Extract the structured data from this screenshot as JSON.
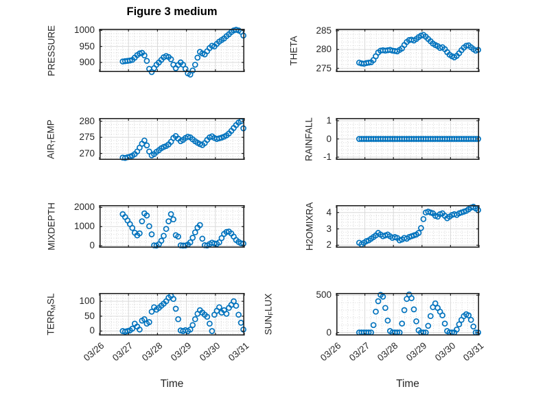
{
  "figure": {
    "title": "Figure 3 medium",
    "xlabel": "Time",
    "background": "#ffffff",
    "axis_color": "#222222",
    "tick_label_color": "#262626",
    "marker_color": "#0072BD",
    "major_grid_color": "#d9d9d9",
    "minor_grid_color": "#cfcfcf"
  },
  "time_axis": {
    "xlim_days": [
      0,
      5
    ],
    "tick_labels": [
      "03/26",
      "03/27",
      "03/28",
      "03/29",
      "03/30",
      "03/31"
    ],
    "minor_step_day": 0.2,
    "x_start_day": 0.8,
    "x_step_day": 0.0833333
  },
  "chart_data": [
    {
      "name": "PRESSURE",
      "type": "scatter",
      "ylabel": "PRESSURE",
      "ylim": [
        870,
        1005
      ],
      "yticks": [
        900,
        950,
        1000
      ],
      "minor_step": 10,
      "values": [
        903,
        904,
        905,
        906,
        908,
        915,
        923,
        928,
        930,
        922,
        905,
        880,
        870,
        882,
        893,
        900,
        908,
        916,
        920,
        917,
        910,
        893,
        882,
        892,
        900,
        893,
        880,
        866,
        862,
        875,
        893,
        915,
        933,
        928,
        925,
        935,
        945,
        952,
        950,
        958,
        965,
        970,
        975,
        982,
        988,
        995,
        1000,
        1002,
        1000,
        996,
        984
      ]
    },
    {
      "name": "THETA",
      "type": "scatter",
      "ylabel": "THETA",
      "ylim": [
        274,
        285.5
      ],
      "yticks": [
        275,
        280,
        285
      ],
      "minor_step": 1,
      "values": [
        276.5,
        276.3,
        276.2,
        276.4,
        276.5,
        276.6,
        277.2,
        278.2,
        279.2,
        279.7,
        279.8,
        279.7,
        279.8,
        279.9,
        279.7,
        279.6,
        279.5,
        279.9,
        280.3,
        281.2,
        282.0,
        282.5,
        282.6,
        282.4,
        282.8,
        283.3,
        283.7,
        283.9,
        283.4,
        282.8,
        282.2,
        281.6,
        281.2,
        280.9,
        280.4,
        280.6,
        280.1,
        279.3,
        278.6,
        278.2,
        277.9,
        278.3,
        279.0,
        279.8,
        280.5,
        281.0,
        281.1,
        280.6,
        280.1,
        279.7,
        279.9
      ]
    },
    {
      "name": "AIR_TEMP",
      "type": "scatter",
      "ylabel": "AIR_TEMP",
      "ylim": [
        268,
        281
      ],
      "yticks": [
        270,
        275,
        280
      ],
      "minor_step": 1,
      "values": [
        268.7,
        268.6,
        268.8,
        269.0,
        269.3,
        269.8,
        270.6,
        271.8,
        273.0,
        274.0,
        272.5,
        270.6,
        269.4,
        269.8,
        270.5,
        271.0,
        271.6,
        272.0,
        272.3,
        272.8,
        273.6,
        274.8,
        275.4,
        274.6,
        273.8,
        274.2,
        274.8,
        275.2,
        275.0,
        274.4,
        273.8,
        273.3,
        272.9,
        272.6,
        273.2,
        274.2,
        275.0,
        275.3,
        274.8,
        274.5,
        274.7,
        274.9,
        275.2,
        275.6,
        276.2,
        277.0,
        277.9,
        278.8,
        279.6,
        280.0,
        277.8
      ]
    },
    {
      "name": "RAINFALL",
      "type": "scatter",
      "ylabel": "RAINFALL",
      "ylim": [
        -1.15,
        1.15
      ],
      "yticks": [
        -1,
        0,
        1
      ],
      "minor_step": 0.2,
      "values": [
        0,
        0,
        0,
        0,
        0,
        0,
        0,
        0,
        0,
        0,
        0,
        0,
        0,
        0,
        0,
        0,
        0,
        0,
        0,
        0,
        0,
        0,
        0,
        0,
        0,
        0,
        0,
        0,
        0,
        0,
        0,
        0,
        0,
        0,
        0,
        0,
        0,
        0,
        0,
        0,
        0,
        0,
        0,
        0,
        0,
        0,
        0,
        0,
        0,
        0,
        0
      ]
    },
    {
      "name": "MIXDEPTH",
      "type": "scatter",
      "ylabel": "MIXDEPTH",
      "ylim": [
        -100,
        2120
      ],
      "yticks": [
        0,
        1000,
        2000
      ],
      "minor_step": 200,
      "values": [
        1650,
        1500,
        1320,
        1130,
        930,
        680,
        540,
        650,
        1280,
        1690,
        1580,
        1020,
        600,
        20,
        10,
        80,
        260,
        520,
        880,
        1280,
        1650,
        1380,
        550,
        480,
        20,
        10,
        15,
        60,
        180,
        420,
        700,
        950,
        1080,
        370,
        30,
        15,
        90,
        160,
        120,
        100,
        180,
        400,
        620,
        720,
        740,
        640,
        480,
        300,
        200,
        130,
        110
      ]
    },
    {
      "name": "H2OMIXRA",
      "type": "scatter",
      "ylabel": "H2OMIXRA",
      "ylim": [
        1.85,
        4.45
      ],
      "yticks": [
        2,
        3,
        4
      ],
      "minor_step": 0.2,
      "values": [
        2.15,
        2.05,
        2.15,
        2.25,
        2.3,
        2.4,
        2.5,
        2.6,
        2.75,
        2.65,
        2.55,
        2.6,
        2.65,
        2.55,
        2.45,
        2.5,
        2.45,
        2.3,
        2.35,
        2.45,
        2.4,
        2.5,
        2.55,
        2.6,
        2.65,
        2.75,
        3.05,
        3.6,
        4.0,
        4.05,
        4.0,
        3.95,
        3.8,
        3.75,
        3.9,
        3.95,
        3.8,
        3.65,
        3.75,
        3.85,
        3.9,
        3.85,
        3.95,
        4.0,
        4.05,
        4.1,
        4.2,
        4.3,
        4.35,
        4.25,
        4.15
      ]
    },
    {
      "name": "TERR_MSL",
      "type": "scatter",
      "ylabel": "TERR_MSL",
      "ylim": [
        -15,
        128
      ],
      "yticks": [
        0,
        50,
        100
      ],
      "minor_step": 10,
      "values": [
        0,
        -2,
        0,
        2,
        8,
        25,
        15,
        5,
        35,
        40,
        25,
        30,
        65,
        80,
        72,
        78,
        85,
        92,
        100,
        112,
        118,
        108,
        75,
        40,
        2,
        0,
        3,
        0,
        5,
        20,
        40,
        58,
        70,
        62,
        55,
        48,
        25,
        0,
        55,
        68,
        80,
        62,
        70,
        58,
        78,
        88,
        100,
        85,
        55,
        28,
        5
      ]
    },
    {
      "name": "SUN_FLUX",
      "type": "scatter",
      "ylabel": "SUN_FLUX",
      "ylim": [
        -40,
        530
      ],
      "yticks": [
        0,
        500
      ],
      "minor_step": 100,
      "values": [
        0,
        0,
        0,
        0,
        0,
        0,
        100,
        280,
        420,
        505,
        480,
        330,
        160,
        20,
        0,
        0,
        0,
        0,
        120,
        300,
        450,
        510,
        460,
        310,
        150,
        30,
        0,
        0,
        0,
        90,
        220,
        340,
        390,
        330,
        280,
        230,
        120,
        20,
        0,
        0,
        0,
        40,
        110,
        170,
        220,
        245,
        230,
        170,
        80,
        0,
        0
      ]
    }
  ]
}
